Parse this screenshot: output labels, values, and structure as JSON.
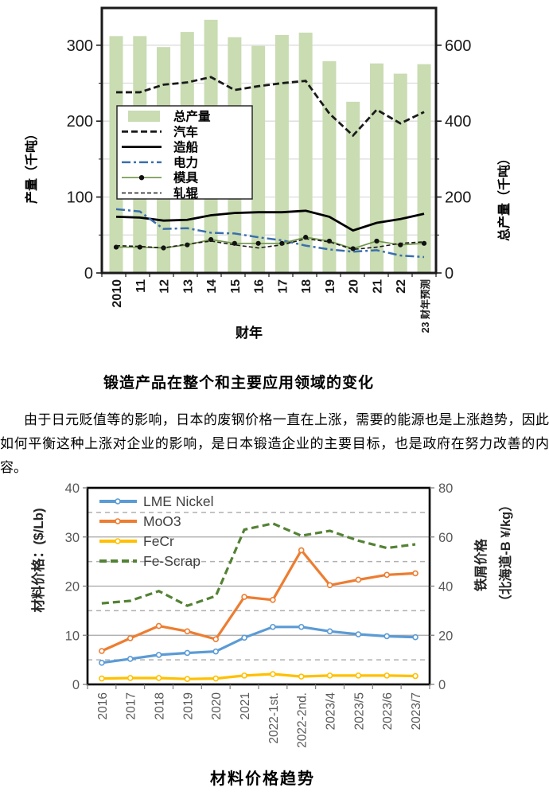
{
  "page": {
    "caption_top_chart": "锻造产品在整个和主要应用领域的变化",
    "paragraph": "由于日元贬值等的影响，日本的废钢价格一直在上涨，需要的能源也是上涨趋势，因此如何平衡这种上涨对企业的影响，是日本锻造企业的主要目标，也是政府在努力改善的内容。",
    "caption_bottom_chart": "材料价格趋势"
  },
  "chart_data": [
    {
      "type": "bar+line",
      "title": "锻造产品在整个和主要应用领域的变化",
      "xlabel": "财年",
      "ylabel_left": "产量（千吨）",
      "ylabel_right": "总产量（千吨）",
      "categories": [
        "2010",
        "11",
        "12",
        "13",
        "14",
        "15",
        "16",
        "17",
        "18",
        "19",
        "20",
        "21",
        "22",
        "23 财年预测"
      ],
      "left_axis": {
        "min": 0,
        "max": 349,
        "major_ticks": [
          0,
          100,
          200,
          300
        ],
        "minor_ticks": [
          50,
          150,
          250
        ],
        "grid": true
      },
      "right_axis": {
        "min": 0,
        "max": 698,
        "major_ticks": [
          0,
          200,
          400,
          600
        ],
        "minor_ticks": [
          100,
          300,
          500
        ]
      },
      "bar_series": {
        "name": "总产量",
        "axis": "right",
        "color": "#c9dcb2",
        "values": [
          624,
          624,
          595,
          635,
          667,
          621,
          598,
          627,
          633,
          558,
          451,
          552,
          525,
          550
        ]
      },
      "line_series": [
        {
          "name": "汽车",
          "axis": "left",
          "color": "#1a1a1a",
          "style": "dashed-bold",
          "values": [
            238,
            238,
            248,
            251,
            258,
            241,
            246,
            250,
            253,
            210,
            181,
            215,
            197,
            212
          ]
        },
        {
          "name": "造船",
          "axis": "left",
          "color": "#000000",
          "style": "solid",
          "values": [
            74,
            73,
            69,
            70,
            76,
            79,
            80,
            80,
            82,
            74,
            56,
            66,
            71,
            78
          ]
        },
        {
          "name": "电力",
          "axis": "left",
          "color": "#3a6fad",
          "style": "dashdot",
          "values": [
            84,
            81,
            58,
            59,
            53,
            52,
            47,
            43,
            36,
            31,
            28,
            30,
            23,
            21
          ]
        },
        {
          "name": "模具",
          "axis": "left",
          "color": "#71964a",
          "style": "solid-marker",
          "values": [
            34,
            34,
            33,
            37,
            44,
            39,
            39,
            39,
            47,
            42,
            32,
            42,
            37,
            39
          ]
        },
        {
          "name": "轧辊",
          "axis": "left",
          "color": "#1a1a1a",
          "style": "dashed-thin",
          "values": [
            36,
            35,
            33,
            38,
            42,
            37,
            33,
            37,
            45,
            41,
            31,
            34,
            39,
            41
          ]
        }
      ],
      "legend_position": "inside-left"
    },
    {
      "type": "line",
      "title": "材料价格趋势",
      "ylabel_left": "材料价格：($/Lb)",
      "ylabel_right_line1": "铁屑价格",
      "ylabel_right_line2": "（北海道-B ¥/kg）",
      "categories": [
        "2016",
        "2017",
        "2018",
        "2019",
        "2020",
        "2021",
        "2022-1st.",
        "2022-2nd.",
        "2023/4",
        "2023/5",
        "2023/6",
        "2023/7"
      ],
      "left_axis": {
        "min": 0,
        "max": 40,
        "major_ticks": [
          0,
          10,
          20,
          30,
          40
        ],
        "solid_grid": [
          10,
          20,
          30
        ],
        "dashed_grid": [
          5,
          15,
          25,
          35
        ]
      },
      "right_axis": {
        "min": 0,
        "max": 80,
        "major_ticks": [
          0,
          20,
          40,
          60,
          80
        ]
      },
      "series": [
        {
          "name": "LME Nickel",
          "axis": "left",
          "color": "#5b9bd5",
          "style": "solid-marker",
          "values": [
            4.4,
            5.2,
            6.0,
            6.4,
            6.7,
            9.5,
            11.7,
            11.7,
            10.8,
            10.2,
            9.8,
            9.6
          ]
        },
        {
          "name": "MoO3",
          "axis": "left",
          "color": "#ed7d31",
          "style": "solid-marker",
          "values": [
            6.8,
            9.4,
            11.9,
            10.8,
            9.2,
            17.8,
            17.2,
            27.3,
            20.2,
            21.3,
            22.3,
            22.6
          ]
        },
        {
          "name": "FeCr",
          "axis": "left",
          "color": "#ffc000",
          "style": "solid-marker",
          "values": [
            1.2,
            1.3,
            1.3,
            1.1,
            1.2,
            1.8,
            2.1,
            1.6,
            1.8,
            1.8,
            1.8,
            1.7
          ]
        },
        {
          "name": "Fe-Scrap",
          "axis": "right",
          "color": "#548235",
          "style": "dashed",
          "values": [
            33,
            34,
            38,
            32,
            36,
            63,
            65.5,
            60.5,
            62.5,
            58.5,
            55.5,
            57
          ]
        }
      ],
      "legend_position": "inside-top-left"
    }
  ]
}
